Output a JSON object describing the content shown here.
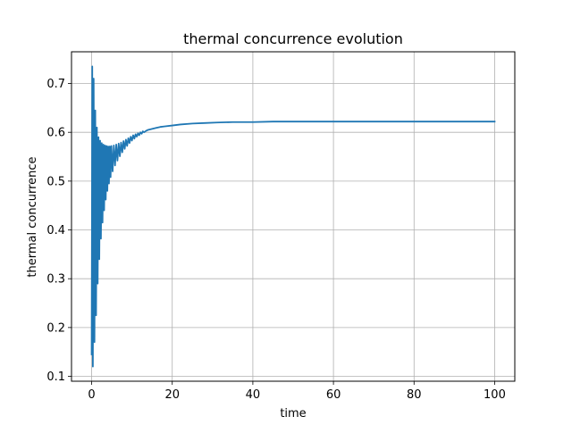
{
  "chart_data": {
    "type": "line",
    "title": "thermal concurrence evolution",
    "xlabel": "time",
    "ylabel": "thermal concurrence",
    "xlim": [
      -5,
      105
    ],
    "ylim": [
      0.09,
      0.765
    ],
    "xticks": [
      0,
      20,
      40,
      60,
      80,
      100
    ],
    "yticks": [
      0.1,
      0.2,
      0.3,
      0.4,
      0.5,
      0.6,
      0.7
    ],
    "xtick_labels": [
      "0",
      "20",
      "40",
      "60",
      "80",
      "100"
    ],
    "ytick_labels": [
      "0.1",
      "0.2",
      "0.3",
      "0.4",
      "0.5",
      "0.6",
      "0.7"
    ],
    "grid": true,
    "series": [
      {
        "color": "#1f77b4",
        "x": [
          0,
          0.15,
          0.3,
          0.5,
          0.7,
          0.9,
          1.1,
          1.3,
          1.5,
          1.7,
          1.9,
          2.1,
          2.3,
          2.5,
          2.7,
          2.9,
          3.1,
          3.3,
          3.5,
          3.7,
          3.9,
          4.1,
          4.3,
          4.5,
          4.7,
          4.9,
          5.2,
          5.5,
          5.8,
          6.1,
          6.4,
          6.7,
          7.0,
          7.3,
          7.6,
          7.9,
          8.2,
          8.5,
          8.8,
          9.1,
          9.4,
          9.7,
          10.0,
          10.3,
          10.6,
          10.9,
          11.2,
          11.5,
          11.8,
          12.1,
          12.4,
          12.7,
          13.0,
          13.5,
          14,
          15,
          16,
          17,
          18,
          20,
          22,
          25,
          28,
          31,
          35,
          40,
          45,
          50,
          60,
          70,
          80,
          90,
          100
        ],
        "y": [
          0.145,
          0.735,
          0.12,
          0.71,
          0.17,
          0.645,
          0.225,
          0.61,
          0.29,
          0.59,
          0.34,
          0.583,
          0.382,
          0.578,
          0.415,
          0.575,
          0.44,
          0.573,
          0.462,
          0.572,
          0.48,
          0.571,
          0.495,
          0.571,
          0.508,
          0.572,
          0.52,
          0.573,
          0.532,
          0.575,
          0.542,
          0.577,
          0.551,
          0.579,
          0.559,
          0.582,
          0.566,
          0.585,
          0.572,
          0.588,
          0.578,
          0.591,
          0.583,
          0.594,
          0.587,
          0.596,
          0.591,
          0.598,
          0.594,
          0.6,
          0.597,
          0.602,
          0.6,
          0.603,
          0.605,
          0.607,
          0.609,
          0.611,
          0.612,
          0.614,
          0.616,
          0.618,
          0.619,
          0.62,
          0.621,
          0.621,
          0.622,
          0.622,
          0.622,
          0.622,
          0.622,
          0.622,
          0.622
        ]
      }
    ]
  }
}
